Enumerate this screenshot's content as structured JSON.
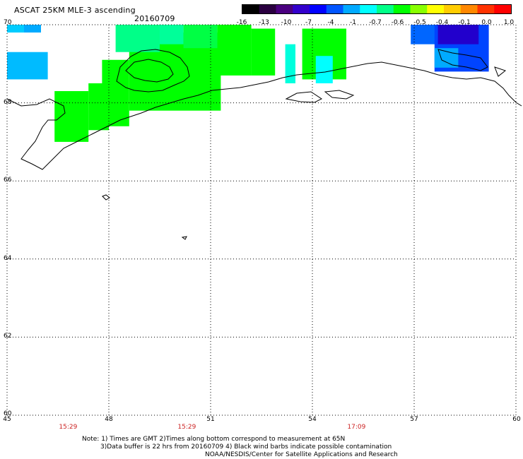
{
  "header": {
    "title": "ASCAT 25KM MLE-3 ascending",
    "date": "20160709"
  },
  "colorbar": {
    "labels": [
      "-16",
      "-13",
      "-10",
      "-7",
      "-4",
      "-1",
      "-0.7",
      "-0.6",
      "-0.5",
      "-0.4",
      "-0.1",
      "0.0",
      "1.0"
    ],
    "colors": [
      "#000000",
      "#2a0040",
      "#4a0080",
      "#3300cc",
      "#0000ff",
      "#0055ff",
      "#00aaff",
      "#00ffff",
      "#00ff88",
      "#00ff00",
      "#88ff00",
      "#ffff00",
      "#ffcc00",
      "#ff8800",
      "#ff3300",
      "#ff0000"
    ]
  },
  "axes": {
    "lat_labels": [
      "70",
      "68",
      "66",
      "64",
      "62",
      "60"
    ],
    "lat_values": [
      70,
      68,
      66,
      64,
      62,
      60
    ],
    "lon_labels": [
      "45",
      "48",
      "51",
      "54",
      "57",
      "60"
    ],
    "lon_values": [
      45,
      48,
      51,
      54,
      57,
      60
    ],
    "lat_range": [
      60,
      70
    ],
    "lon_range": [
      45,
      60
    ],
    "grid": "dotted"
  },
  "time_labels": [
    {
      "text": "15:29",
      "lon": 46.8
    },
    {
      "text": "15:29",
      "lon": 50.3
    },
    {
      "text": "17:09",
      "lon": 55.3
    }
  ],
  "notes": {
    "line1": "Note: 1) Times are GMT 2)Times along bottom correspond to measurement at 65N",
    "line2": "3)Data buffer is 22 hrs from 20160709 4) Black wind barbs indicate possible contamination",
    "line3": "NOAA/NESDIS/Center for Satellite Applications and Research"
  },
  "swaths": [
    {
      "lon": [
        45.0,
        45.5
      ],
      "lat": [
        69.8,
        70.0
      ],
      "color": "#00ccff"
    },
    {
      "lon": [
        45.5,
        46.0
      ],
      "lat": [
        69.8,
        70.0
      ],
      "color": "#00aaff"
    },
    {
      "lon": [
        45.0,
        46.2
      ],
      "lat": [
        68.6,
        69.3
      ],
      "color": "#00bbff"
    },
    {
      "lon": [
        46.4,
        47.4
      ],
      "lat": [
        67.0,
        68.3
      ],
      "color": "#00ff00"
    },
    {
      "lon": [
        47.4,
        48.0
      ],
      "lat": [
        67.3,
        68.5
      ],
      "color": "#00ff00"
    },
    {
      "lon": [
        47.8,
        48.6
      ],
      "lat": [
        67.4,
        69.1
      ],
      "color": "#00ff00"
    },
    {
      "lon": [
        48.6,
        51.3
      ],
      "lat": [
        67.8,
        69.8
      ],
      "color": "#00ff00"
    },
    {
      "lon": [
        48.2,
        49.5
      ],
      "lat": [
        69.3,
        70.0
      ],
      "color": "#00ff88"
    },
    {
      "lon": [
        49.5,
        50.2
      ],
      "lat": [
        69.5,
        70.0
      ],
      "color": "#00ff99"
    },
    {
      "lon": [
        50.2,
        51.2
      ],
      "lat": [
        69.4,
        70.0
      ],
      "color": "#00ff44"
    },
    {
      "lon": [
        51.2,
        52.2
      ],
      "lat": [
        68.7,
        70.0
      ],
      "color": "#00ff00"
    },
    {
      "lon": [
        52.2,
        52.9
      ],
      "lat": [
        68.7,
        69.9
      ],
      "color": "#00ff00"
    },
    {
      "lon": [
        53.7,
        55.0
      ],
      "lat": [
        68.6,
        69.9
      ],
      "color": "#00ff00"
    },
    {
      "lon": [
        53.2,
        53.5
      ],
      "lat": [
        68.5,
        69.5
      ],
      "color": "#00ffdd"
    },
    {
      "lon": [
        54.1,
        54.6
      ],
      "lat": [
        68.5,
        69.2
      ],
      "color": "#00ffff"
    },
    {
      "lon": [
        56.9,
        58.0
      ],
      "lat": [
        69.5,
        70.0
      ],
      "color": "#0066ff"
    },
    {
      "lon": [
        57.6,
        59.2
      ],
      "lat": [
        68.8,
        70.0
      ],
      "color": "#0044ff"
    },
    {
      "lon": [
        57.7,
        58.9
      ],
      "lat": [
        69.5,
        70.0
      ],
      "color": "#2200cc"
    },
    {
      "lon": [
        57.6,
        58.3
      ],
      "lat": [
        68.9,
        69.4
      ],
      "color": "#00aaff"
    }
  ]
}
